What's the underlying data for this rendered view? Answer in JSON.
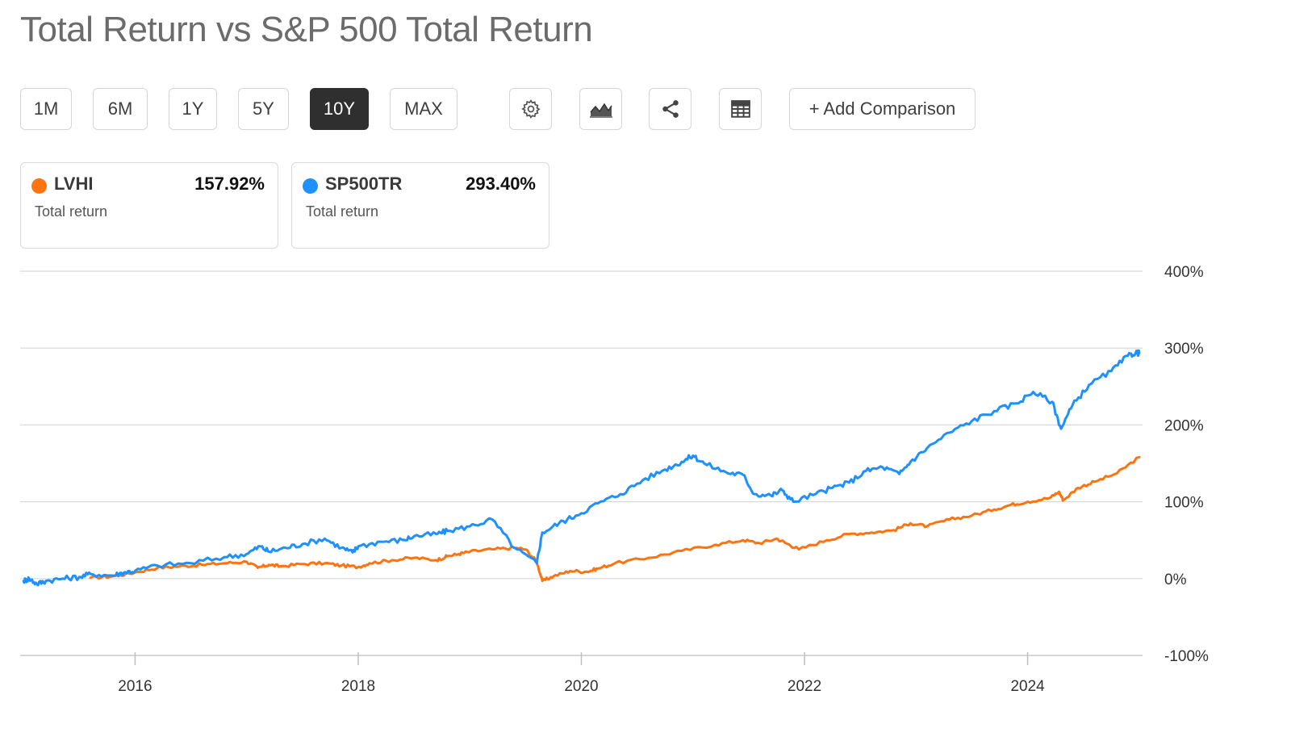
{
  "title": "Total Return vs S&P 500 Total Return",
  "periods": [
    {
      "label": "1M",
      "active": false
    },
    {
      "label": "6M",
      "active": false
    },
    {
      "label": "1Y",
      "active": false
    },
    {
      "label": "5Y",
      "active": false
    },
    {
      "label": "10Y",
      "active": true
    },
    {
      "label": "MAX",
      "active": false
    }
  ],
  "toolbar": {
    "settings_icon": "gear-icon",
    "chart_type_icon": "mountain-chart-icon",
    "share_icon": "share-icon",
    "table_icon": "table-icon",
    "add_comparison_label": "+ Add Comparison"
  },
  "cards": [
    {
      "ticker": "LVHI",
      "value": "157.92%",
      "sub": "Total return",
      "color": "#ff7311"
    },
    {
      "ticker": "SP500TR",
      "value": "293.40%",
      "sub": "Total return",
      "color": "#1e90ff"
    }
  ],
  "chart_data": {
    "type": "line",
    "title": "Total Return vs S&P 500 Total Return",
    "xlabel": "",
    "ylabel": "",
    "y_ticks": [
      "400%",
      "300%",
      "200%",
      "100%",
      "0%",
      "-100%"
    ],
    "x_ticks": [
      "2016",
      "2018",
      "2020",
      "2022",
      "2024"
    ],
    "xlim": [
      2014.97,
      2025.03
    ],
    "ylim": [
      -100,
      400
    ],
    "grid": true,
    "series": [
      {
        "name": "LVHI",
        "color": "#ff7311",
        "x": [
          2015.6,
          2015.8,
          2016.0,
          2016.2,
          2016.4,
          2016.6,
          2016.8,
          2017.0,
          2017.1,
          2017.2,
          2017.3,
          2017.5,
          2017.7,
          2017.85,
          2018.0,
          2018.1,
          2018.3,
          2018.5,
          2018.7,
          2018.8,
          2018.9,
          2019.0,
          2019.2,
          2019.4,
          2019.5,
          2019.6,
          2019.65,
          2019.75,
          2019.9,
          2020.05,
          2020.15,
          2020.3,
          2020.6,
          2020.9,
          2021.2,
          2021.45,
          2021.6,
          2021.75,
          2021.85,
          2021.95,
          2022.2,
          2022.4,
          2022.6,
          2022.8,
          2022.95,
          2023.1,
          2023.3,
          2023.5,
          2023.7,
          2023.85,
          2024.0,
          2024.2,
          2024.28,
          2024.32,
          2024.45,
          2024.6,
          2024.8,
          2025.0
        ],
        "y": [
          1,
          3,
          8,
          14,
          16,
          18,
          20,
          22,
          14,
          18,
          16,
          19,
          20,
          17,
          15,
          20,
          24,
          27,
          24,
          29,
          32,
          35,
          38,
          40,
          38,
          22,
          -3,
          3,
          10,
          9,
          13,
          20,
          27,
          36,
          44,
          50,
          46,
          52,
          45,
          38,
          50,
          58,
          60,
          63,
          72,
          68,
          77,
          82,
          90,
          96,
          100,
          105,
          113,
          102,
          118,
          126,
          137,
          158
        ]
      },
      {
        "name": "SP500TR",
        "color": "#1e90ff",
        "x": [
          2015.0,
          2015.05,
          2015.12,
          2015.2,
          2015.35,
          2015.5,
          2015.6,
          2015.8,
          2015.9,
          2016.0,
          2016.2,
          2016.5,
          2016.8,
          2017.0,
          2017.12,
          2017.2,
          2017.35,
          2017.5,
          2017.7,
          2017.85,
          2017.95,
          2018.0,
          2018.2,
          2018.4,
          2018.5,
          2018.7,
          2018.8,
          2019.0,
          2019.2,
          2019.4,
          2019.6,
          2019.65,
          2019.8,
          2019.95,
          2020.15,
          2020.35,
          2020.55,
          2020.75,
          2020.9,
          2021.0,
          2021.1,
          2021.3,
          2021.45,
          2021.55,
          2021.7,
          2021.8,
          2021.9,
          2022.1,
          2022.25,
          2022.4,
          2022.55,
          2022.7,
          2022.85,
          2022.95,
          2023.1,
          2023.3,
          2023.5,
          2023.7,
          2023.9,
          2024.05,
          2024.22,
          2024.3,
          2024.4,
          2024.55,
          2024.75,
          2024.9,
          2024.97,
          2025.0
        ],
        "y": [
          -3,
          0,
          -7,
          -3,
          0,
          2,
          6,
          4,
          8,
          10,
          17,
          20,
          28,
          32,
          42,
          35,
          40,
          45,
          52,
          40,
          34,
          42,
          48,
          50,
          55,
          58,
          62,
          68,
          77,
          40,
          20,
          60,
          72,
          82,
          98,
          110,
          128,
          142,
          152,
          160,
          150,
          138,
          135,
          110,
          108,
          115,
          100,
          110,
          118,
          125,
          140,
          145,
          136,
          152,
          170,
          190,
          205,
          218,
          228,
          243,
          230,
          195,
          225,
          252,
          270,
          290,
          294,
          293.4
        ]
      }
    ]
  }
}
